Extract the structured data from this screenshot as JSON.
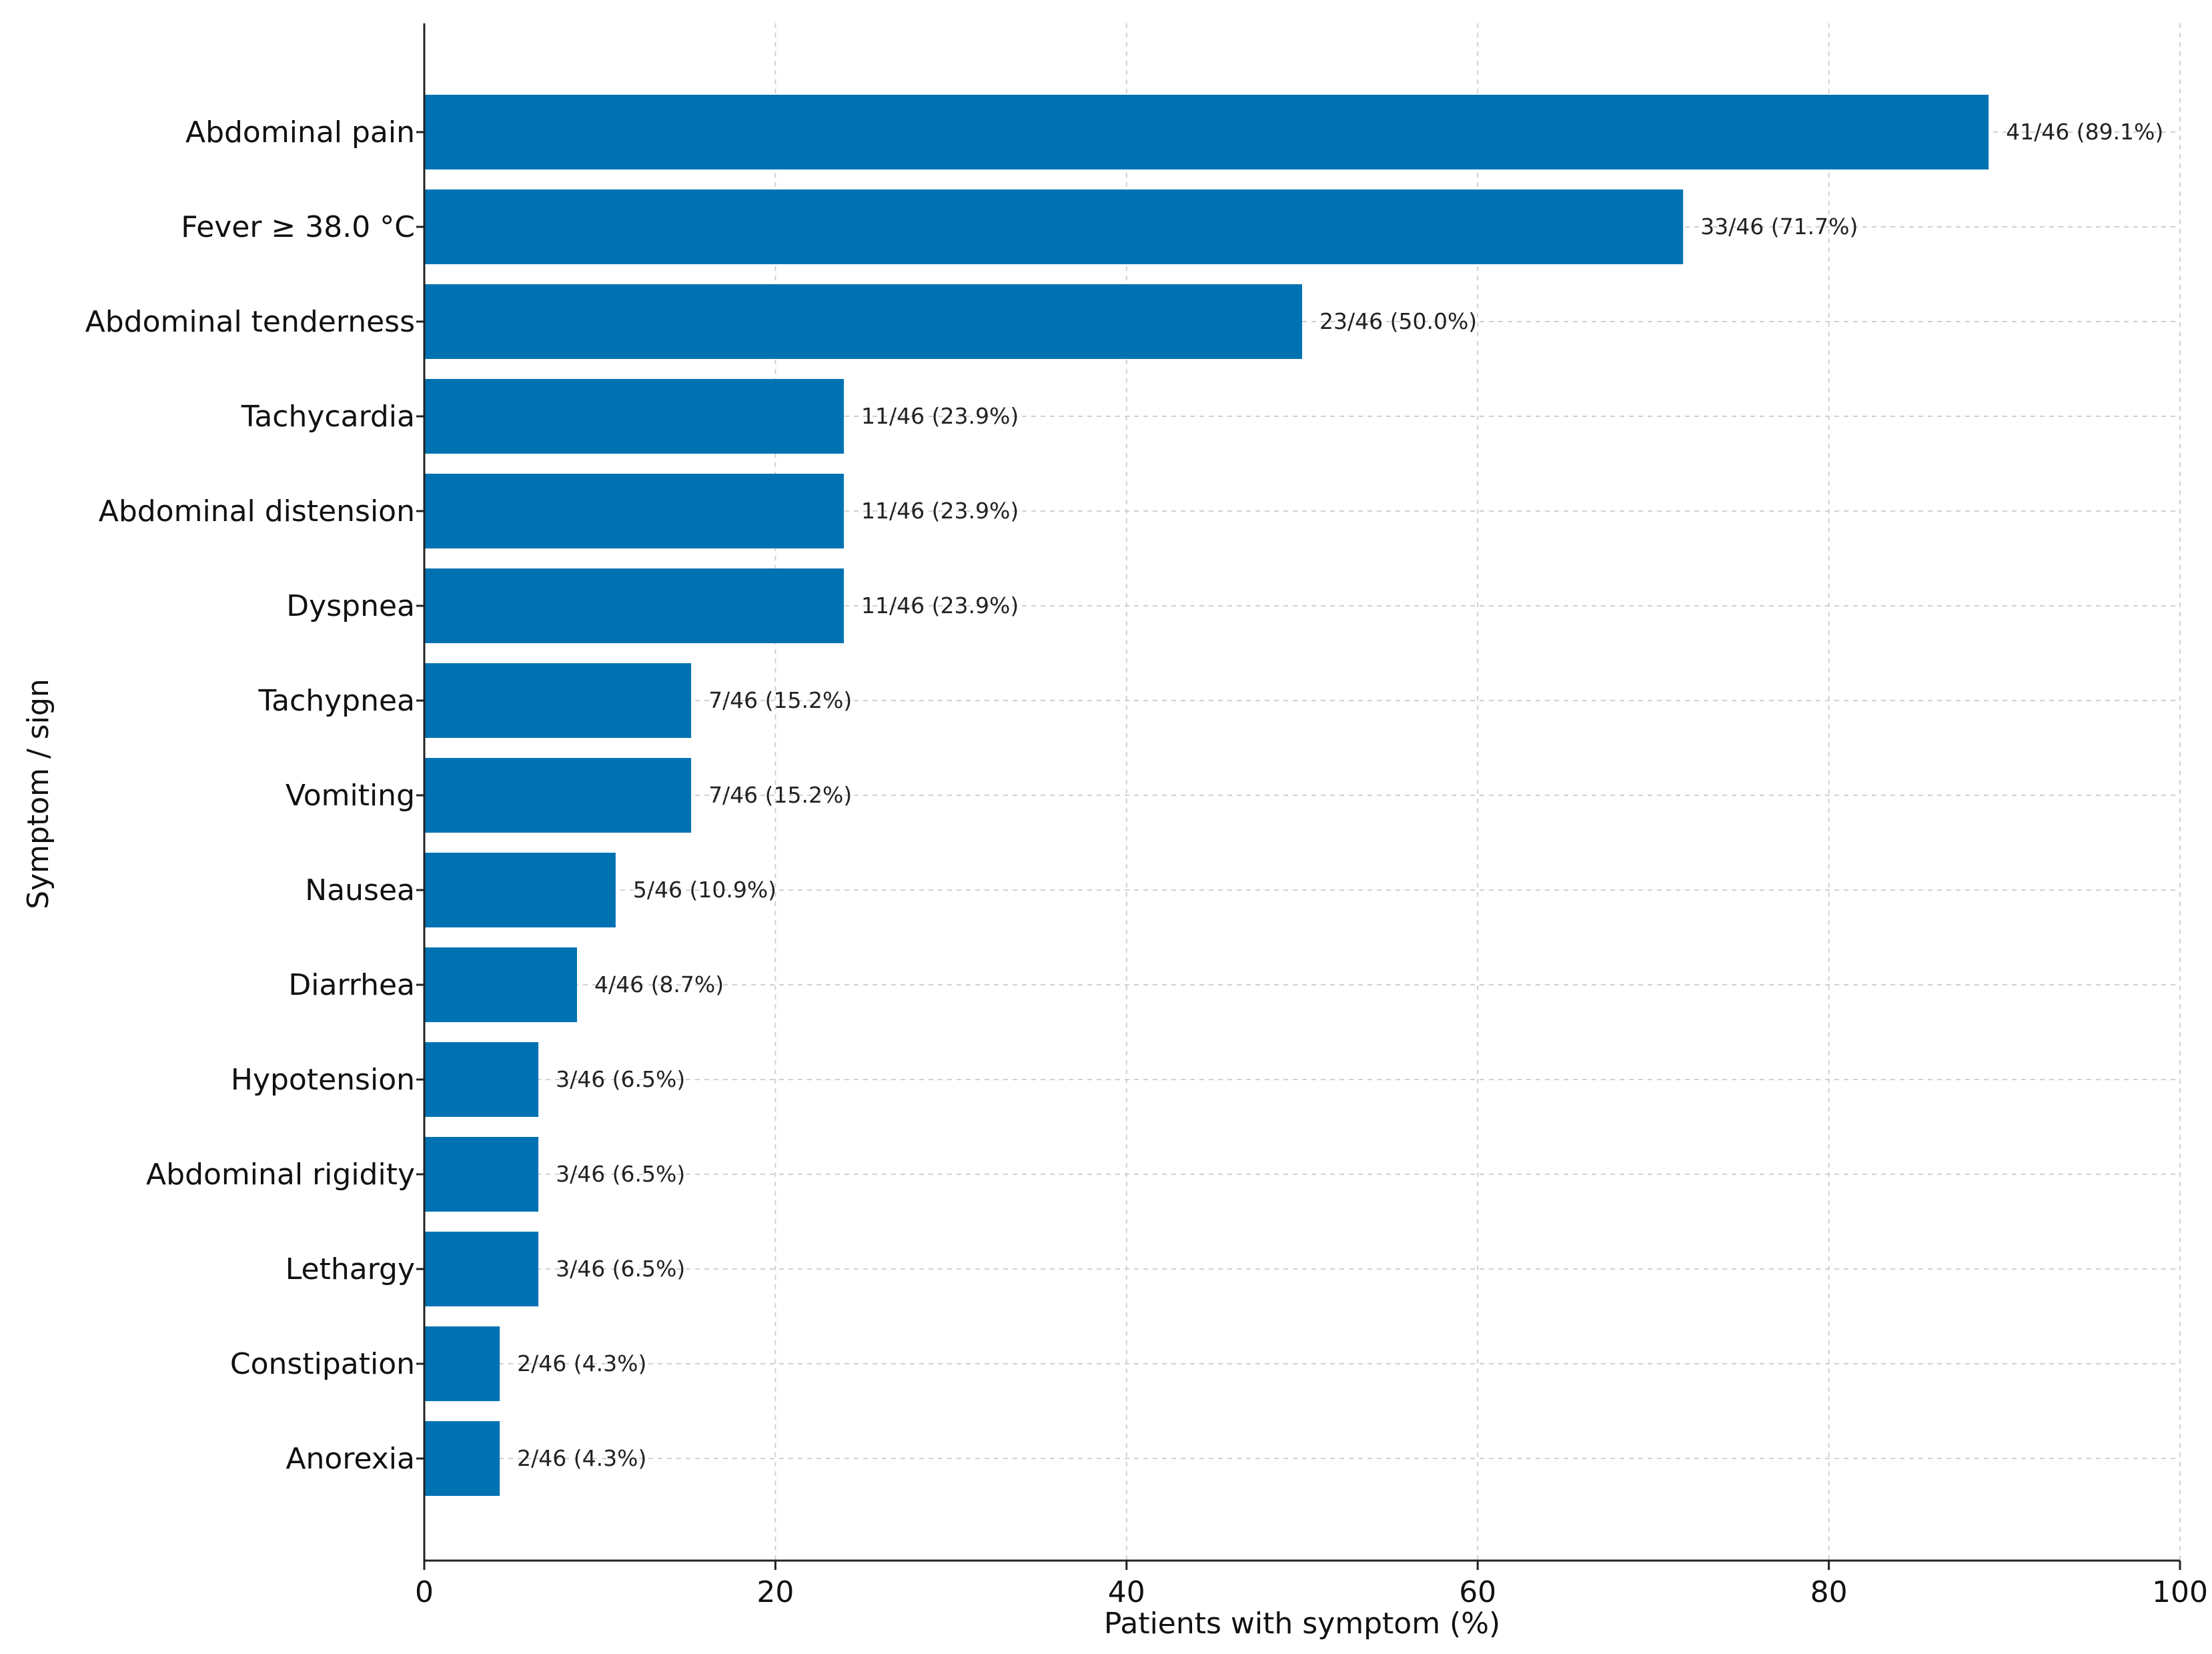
{
  "chart_data": {
    "type": "bar",
    "orientation": "horizontal",
    "title": "",
    "xlabel": "Patients with symptom (%)",
    "ylabel": "Symptom / sign",
    "xlim": [
      0,
      100
    ],
    "xticks": [
      0,
      20,
      40,
      60,
      80,
      100
    ],
    "grid": true,
    "bar_color": "#0072b2",
    "categories": [
      "Abdominal pain",
      "Fever ≥ 38.0 °C",
      "Abdominal tenderness",
      "Tachycardia",
      "Abdominal distension",
      "Dyspnea",
      "Tachypnea",
      "Vomiting",
      "Nausea",
      "Diarrhea",
      "Hypotension",
      "Abdominal rigidity",
      "Lethargy",
      "Constipation",
      "Anorexia"
    ],
    "values": [
      89.1,
      71.7,
      50.0,
      23.9,
      23.9,
      23.9,
      15.2,
      15.2,
      10.9,
      8.7,
      6.5,
      6.5,
      6.5,
      4.3,
      4.3
    ],
    "data_labels": [
      "41/46 (89.1%)",
      "33/46 (71.7%)",
      "23/46 (50.0%)",
      "11/46 (23.9%)",
      "11/46 (23.9%)",
      "11/46 (23.9%)",
      "7/46 (15.2%)",
      "7/46 (15.2%)",
      "5/46 (10.9%)",
      "4/46 (8.7%)",
      "3/46 (6.5%)",
      "3/46 (6.5%)",
      "3/46 (6.5%)",
      "2/46 (4.3%)",
      "2/46 (4.3%)"
    ]
  }
}
